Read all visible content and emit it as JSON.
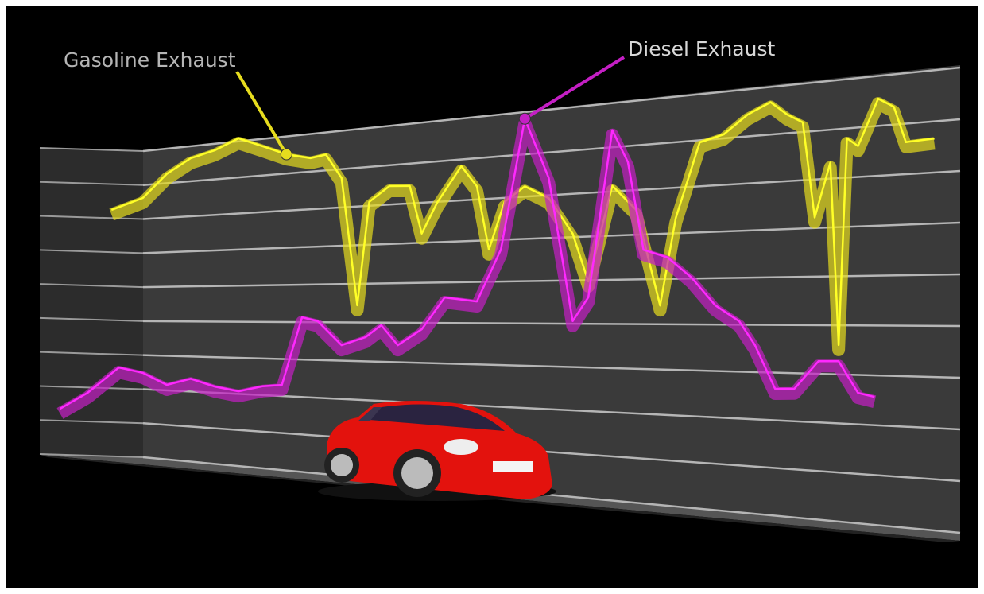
{
  "chart_data": {
    "type": "line",
    "xlim": [
      0,
      100
    ],
    "ylim": [
      0,
      9
    ],
    "yticks": [
      0,
      1,
      2,
      3,
      4,
      5,
      6,
      7,
      8,
      9
    ],
    "grid": true,
    "series": [
      {
        "name": "Gasoline Exhaust",
        "color": "#e6dc1e",
        "x": [
          7.8,
          11.2,
          13.8,
          16.4,
          19,
          21.6,
          24.2,
          26.8,
          29.4,
          31.1,
          32.8,
          34.5,
          35.8,
          38,
          40.2,
          41.5,
          43.2,
          45.8,
          47.5,
          48.8,
          50.5,
          52.7,
          55.3,
          57.9,
          59.6,
          62.2,
          64.8,
          67.4,
          69.1,
          71.7,
          74.3,
          76.9,
          79.4,
          81.2,
          82.9,
          84.2,
          85.9,
          86.8,
          87.7,
          88.9,
          91.1,
          92.8,
          94.1,
          97.2
        ],
        "values": [
          7.19,
          7.48,
          8.13,
          8.52,
          8.68,
          8.95,
          8.67,
          8.39,
          8.23,
          8.29,
          7.64,
          4.32,
          6.98,
          7.35,
          7.32,
          6.11,
          6.87,
          7.72,
          7.2,
          5.66,
          6.79,
          7.13,
          6.82,
          5.97,
          4.86,
          7.02,
          6.45,
          4.31,
          6.23,
          7.85,
          7.98,
          8.36,
          8.58,
          8.29,
          8.1,
          6.12,
          7.23,
          3.5,
          7.7,
          7.53,
          8.45,
          8.26,
          7.54,
          7.57
        ]
      },
      {
        "name": "Diesel Exhaust",
        "color": "#c41fc4",
        "x": [
          2.2,
          5.2,
          8.6,
          11.2,
          13.8,
          16.4,
          19,
          21.6,
          24.2,
          26.3,
          28.5,
          30.2,
          32.8,
          35.4,
          37.1,
          38.9,
          41.5,
          44,
          47.5,
          50.1,
          52.7,
          55.3,
          57.9,
          59.6,
          62.2,
          63.9,
          65.6,
          68.2,
          70.8,
          73.4,
          76,
          77.7,
          79.9,
          82,
          84.6,
          86.8,
          88.9,
          90.7
        ],
        "values": [
          1.12,
          1.66,
          2.47,
          2.34,
          2.02,
          2.23,
          2.04,
          1.94,
          2.11,
          2.17,
          4.0,
          3.9,
          3.28,
          3.5,
          3.81,
          3.31,
          3.72,
          4.51,
          4.41,
          5.65,
          8.73,
          7.29,
          3.95,
          4.5,
          8.28,
          7.53,
          5.55,
          5.37,
          4.92,
          4.31,
          3.97,
          3.47,
          2.56,
          2.58,
          3.16,
          3.17,
          2.54,
          2.47
        ]
      }
    ]
  }
}
